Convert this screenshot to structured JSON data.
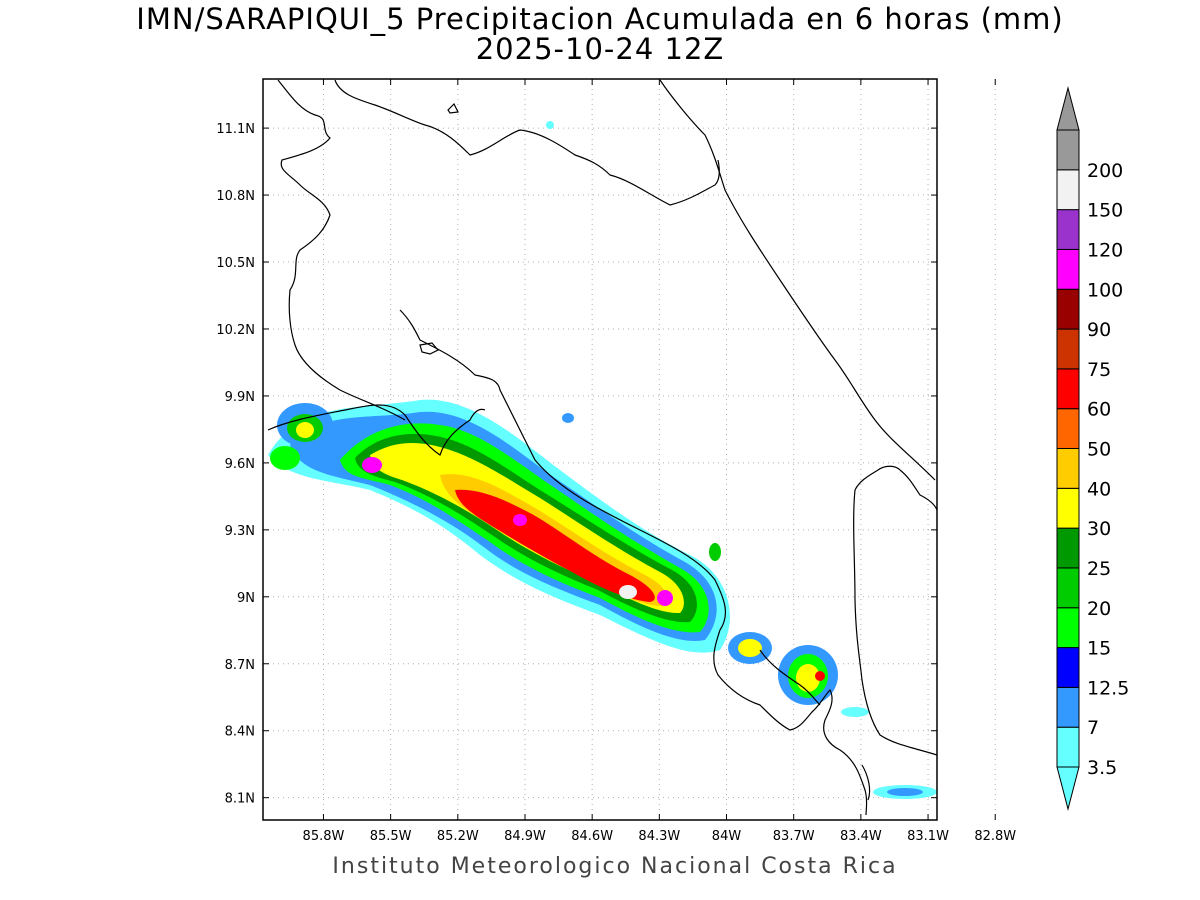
{
  "title": {
    "line1": "IMN/SARAPIQUI_5 Precipitacion Acumulada en 6 horas (mm)",
    "line2": "2025-10-24 12Z"
  },
  "footer": "Instituto Meteorologico Nacional Costa Rica",
  "map": {
    "lat_ticks": [
      "11.1N",
      "10.8N",
      "10.5N",
      "10.2N",
      "9.9N",
      "9.6N",
      "9.3N",
      "9N",
      "8.7N",
      "8.4N",
      "8.1N"
    ],
    "lon_ticks": [
      "85.8W",
      "85.5W",
      "85.2W",
      "84.9W",
      "84.6W",
      "84.3W",
      "84W",
      "83.7W",
      "83.4W",
      "83.1W",
      "82.8W"
    ],
    "lon_range": [
      -86.07,
      -83.06
    ],
    "lat_range": [
      8.0,
      11.32
    ],
    "gridlines": true
  },
  "colorbar": {
    "levels": [
      {
        "label": "3.5",
        "color": "#66ffff"
      },
      {
        "label": "7",
        "color": "#3399ff"
      },
      {
        "label": "12.5",
        "color": "#0000ff"
      },
      {
        "label": "15",
        "color": "#00ff00"
      },
      {
        "label": "20",
        "color": "#00cc00"
      },
      {
        "label": "25",
        "color": "#009900"
      },
      {
        "label": "30",
        "color": "#ffff00"
      },
      {
        "label": "40",
        "color": "#ffcc00"
      },
      {
        "label": "50",
        "color": "#ff6600"
      },
      {
        "label": "60",
        "color": "#ff0000"
      },
      {
        "label": "75",
        "color": "#cc3300"
      },
      {
        "label": "90",
        "color": "#990000"
      },
      {
        "label": "100",
        "color": "#ff00ff"
      },
      {
        "label": "120",
        "color": "#9933cc"
      },
      {
        "label": "150",
        "color": "#f2f2f2"
      },
      {
        "label": "200",
        "color": "#999999"
      }
    ]
  }
}
